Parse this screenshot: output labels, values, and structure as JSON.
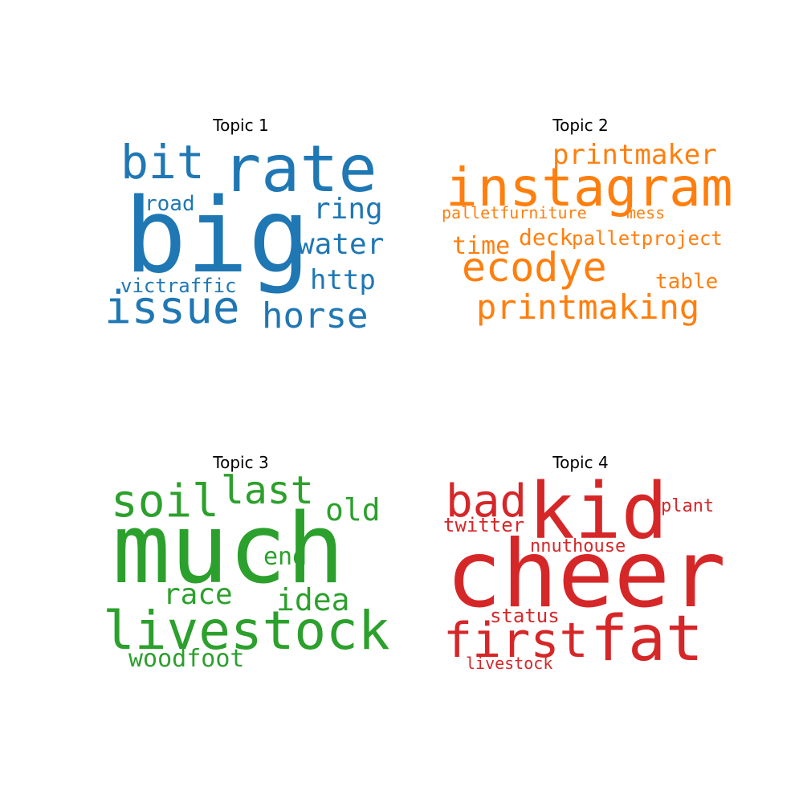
{
  "chart_data": [
    {
      "type": "wordcloud",
      "title": "Topic 1",
      "color": "#1f77b4",
      "words": [
        {
          "text": "big"
        },
        {
          "text": "rate"
        },
        {
          "text": "bit"
        },
        {
          "text": "issue"
        },
        {
          "text": "horse"
        },
        {
          "text": "water"
        },
        {
          "text": "ring"
        },
        {
          "text": "http"
        },
        {
          "text": "victraffic"
        },
        {
          "text": "road"
        }
      ]
    },
    {
      "type": "wordcloud",
      "title": "Topic 2",
      "color": "#ff7f0e",
      "words": [
        {
          "text": "instagram"
        },
        {
          "text": "ecodye"
        },
        {
          "text": "printmaking"
        },
        {
          "text": "printmaker"
        },
        {
          "text": "time"
        },
        {
          "text": "deck"
        },
        {
          "text": "palletproject"
        },
        {
          "text": "table"
        },
        {
          "text": "palletfurniture"
        },
        {
          "text": "mess"
        }
      ]
    },
    {
      "type": "wordcloud",
      "title": "Topic 3",
      "color": "#2ca02c",
      "words": [
        {
          "text": "much"
        },
        {
          "text": "livestock"
        },
        {
          "text": "soil"
        },
        {
          "text": "last"
        },
        {
          "text": "old"
        },
        {
          "text": "idea"
        },
        {
          "text": "race"
        },
        {
          "text": "end"
        },
        {
          "text": "woodfoot"
        }
      ]
    },
    {
      "type": "wordcloud",
      "title": "Topic 4",
      "color": "#d62728",
      "words": [
        {
          "text": "cheer"
        },
        {
          "text": "kid"
        },
        {
          "text": "fat"
        },
        {
          "text": "first"
        },
        {
          "text": "bad"
        },
        {
          "text": "twitter"
        },
        {
          "text": "plant"
        },
        {
          "text": "status"
        },
        {
          "text": "nnuthouse"
        },
        {
          "text": "livestock"
        }
      ]
    }
  ]
}
